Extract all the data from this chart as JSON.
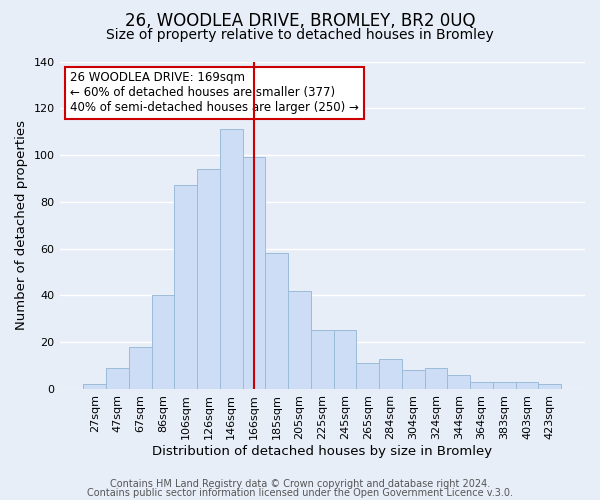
{
  "title": "26, WOODLEA DRIVE, BROMLEY, BR2 0UQ",
  "subtitle": "Size of property relative to detached houses in Bromley",
  "xlabel": "Distribution of detached houses by size in Bromley",
  "ylabel": "Number of detached properties",
  "categories": [
    "27sqm",
    "47sqm",
    "67sqm",
    "86sqm",
    "106sqm",
    "126sqm",
    "146sqm",
    "166sqm",
    "185sqm",
    "205sqm",
    "225sqm",
    "245sqm",
    "265sqm",
    "284sqm",
    "304sqm",
    "324sqm",
    "344sqm",
    "364sqm",
    "383sqm",
    "403sqm",
    "423sqm"
  ],
  "values": [
    2,
    9,
    18,
    40,
    87,
    94,
    111,
    99,
    58,
    42,
    25,
    25,
    11,
    13,
    8,
    9,
    6,
    3,
    3,
    3,
    2
  ],
  "bar_color": "#ccddf5",
  "bar_edge_color": "#9bbbd8",
  "vline_index": 7,
  "vline_color": "#cc0000",
  "ylim": [
    0,
    140
  ],
  "yticks": [
    0,
    20,
    40,
    60,
    80,
    100,
    120,
    140
  ],
  "annotation_title": "26 WOODLEA DRIVE: 169sqm",
  "annotation_line1": "← 60% of detached houses are smaller (377)",
  "annotation_line2": "40% of semi-detached houses are larger (250) →",
  "annotation_box_facecolor": "#ffffff",
  "annotation_box_edgecolor": "#cc0000",
  "footer1": "Contains HM Land Registry data © Crown copyright and database right 2024.",
  "footer2": "Contains public sector information licensed under the Open Government Licence v.3.0.",
  "background_color": "#e8eef8",
  "grid_color": "#ffffff",
  "title_fontsize": 12,
  "subtitle_fontsize": 10,
  "axis_label_fontsize": 9.5,
  "tick_fontsize": 8,
  "annotation_fontsize": 8.5,
  "footer_fontsize": 7
}
